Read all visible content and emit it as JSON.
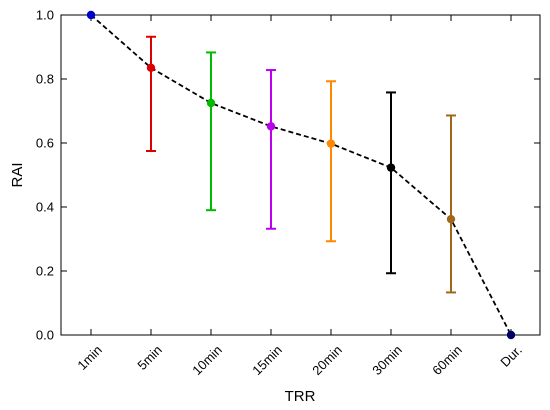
{
  "chart_data": {
    "type": "scatter",
    "title": "",
    "xlabel": "TRR",
    "ylabel": "RAI",
    "categories": [
      "1min",
      "5min",
      "10min",
      "15min",
      "20min",
      "30min",
      "60min",
      "Dur."
    ],
    "values": [
      1.0,
      0.835,
      0.725,
      0.652,
      0.598,
      0.523,
      0.362,
      0.0
    ],
    "error_low": [
      null,
      0.575,
      0.39,
      0.332,
      0.293,
      0.193,
      0.133,
      null
    ],
    "error_high": [
      null,
      0.932,
      0.883,
      0.828,
      0.793,
      0.758,
      0.686,
      null
    ],
    "colors": [
      "#0000cc",
      "#dd0000",
      "#00bb00",
      "#bb00ee",
      "#ff8800",
      "#000000",
      "#a0661a",
      "#000066"
    ],
    "connecting_line": {
      "style": "dashed",
      "color": "#000000"
    },
    "ylim": [
      0.0,
      1.0
    ],
    "yticks": [
      0.0,
      0.2,
      0.4,
      0.6,
      0.8,
      1.0
    ],
    "ytick_labels": [
      "0.0",
      "0.2",
      "0.4",
      "0.6",
      "0.8",
      "1.0"
    ],
    "grid": false,
    "legend": "none"
  }
}
